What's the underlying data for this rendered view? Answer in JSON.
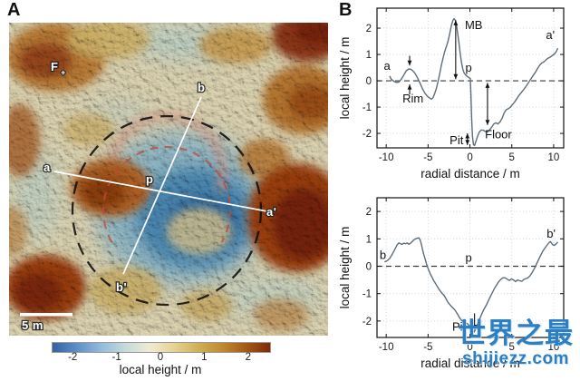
{
  "panels": {
    "a_label": "A",
    "b_label": "B"
  },
  "map": {
    "description": "hillshaded local-topography map of a pit crater with central mound",
    "labels": {
      "feature_f": "F",
      "feature_f_sub": "+",
      "a": "a",
      "a_prime": "a'",
      "b": "b",
      "b_prime": "b'",
      "center_p": "p"
    },
    "scale_bar_label": "5 m",
    "colorbar": {
      "label": "local height / m",
      "ticks": [
        -2,
        -1,
        0,
        1,
        2
      ],
      "range": [
        -2.48,
        2.48
      ],
      "gradient": [
        "#36619f",
        "#5e8ec6",
        "#93badb",
        "#c3dbd9",
        "#efead6",
        "#e6d493",
        "#d0b057",
        "#c08a32",
        "#a45a17",
        "#7c2a0a"
      ]
    },
    "overlay_colors": {
      "rim_circle_dashed": "#0d0d0d",
      "inner_arc_dashed": "#c24a3a",
      "profile_lines": "#ffffff"
    }
  },
  "watermark": {
    "title": "世界之最",
    "site": "shijiezz.com",
    "color": "#2b7fc2"
  },
  "chart_data": [
    {
      "type": "line",
      "name": "radial profile a-a'",
      "xlabel": "radial distance / m",
      "ylabel": "local height / m",
      "xlim": [
        -11.1,
        11.2
      ],
      "ylim": [
        -2.55,
        2.76
      ],
      "xticks": [
        -10,
        -5,
        0,
        5,
        10
      ],
      "yticks": [
        -2,
        -1,
        0,
        1,
        2
      ],
      "grid": true,
      "zero_line": "dashed",
      "line_color": "#5d6d7a",
      "points": [
        [
          -9.6,
          0.18
        ],
        [
          -9.4,
          0.06
        ],
        [
          -9.1,
          -0.02
        ],
        [
          -8.8,
          -0.06
        ],
        [
          -8.5,
          -0.05
        ],
        [
          -8.2,
          0.06
        ],
        [
          -7.9,
          0.22
        ],
        [
          -7.6,
          0.38
        ],
        [
          -7.3,
          0.45
        ],
        [
          -7.1,
          0.44
        ],
        [
          -6.9,
          0.4
        ],
        [
          -6.6,
          0.3
        ],
        [
          -6.3,
          0.14
        ],
        [
          -6.0,
          -0.06
        ],
        [
          -5.7,
          -0.28
        ],
        [
          -5.4,
          -0.46
        ],
        [
          -5.1,
          -0.58
        ],
        [
          -4.8,
          -0.66
        ],
        [
          -4.6,
          -0.7
        ],
        [
          -4.4,
          -0.64
        ],
        [
          -4.2,
          -0.48
        ],
        [
          -4.0,
          -0.28
        ],
        [
          -3.8,
          -0.02
        ],
        [
          -3.6,
          0.28
        ],
        [
          -3.4,
          0.6
        ],
        [
          -3.2,
          0.88
        ],
        [
          -3.0,
          1.12
        ],
        [
          -2.8,
          1.32
        ],
        [
          -2.6,
          1.52
        ],
        [
          -2.4,
          1.82
        ],
        [
          -2.2,
          2.12
        ],
        [
          -2.05,
          2.28
        ],
        [
          -1.9,
          2.36
        ],
        [
          -1.75,
          2.3
        ],
        [
          -1.6,
          2.1
        ],
        [
          -1.45,
          1.78
        ],
        [
          -1.3,
          1.42
        ],
        [
          -1.15,
          1.02
        ],
        [
          -1.0,
          0.68
        ],
        [
          -0.85,
          0.44
        ],
        [
          -0.7,
          0.3
        ],
        [
          -0.5,
          0.22
        ],
        [
          -0.3,
          0.16
        ],
        [
          -0.1,
          0.12
        ],
        [
          0.05,
          0.08
        ],
        [
          0.12,
          -0.5
        ],
        [
          0.2,
          -1.4
        ],
        [
          0.3,
          -2.1
        ],
        [
          0.42,
          -2.42
        ],
        [
          0.55,
          -2.46
        ],
        [
          0.7,
          -2.32
        ],
        [
          0.9,
          -2.12
        ],
        [
          1.1,
          -1.96
        ],
        [
          1.35,
          -1.87
        ],
        [
          1.6,
          -1.88
        ],
        [
          1.85,
          -1.93
        ],
        [
          2.1,
          -1.94
        ],
        [
          2.35,
          -1.87
        ],
        [
          2.6,
          -1.76
        ],
        [
          2.85,
          -1.64
        ],
        [
          3.1,
          -1.6
        ],
        [
          3.35,
          -1.64
        ],
        [
          3.6,
          -1.56
        ],
        [
          3.85,
          -1.42
        ],
        [
          4.1,
          -1.22
        ],
        [
          4.35,
          -1.1
        ],
        [
          4.6,
          -1.06
        ],
        [
          4.85,
          -1.0
        ],
        [
          5.1,
          -0.9
        ],
        [
          5.35,
          -0.8
        ],
        [
          5.6,
          -0.68
        ],
        [
          5.85,
          -0.56
        ],
        [
          6.1,
          -0.46
        ],
        [
          6.35,
          -0.36
        ],
        [
          6.6,
          -0.26
        ],
        [
          6.85,
          -0.14
        ],
        [
          7.1,
          -0.02
        ],
        [
          7.35,
          0.1
        ],
        [
          7.6,
          0.22
        ],
        [
          7.85,
          0.34
        ],
        [
          8.1,
          0.48
        ],
        [
          8.35,
          0.6
        ],
        [
          8.6,
          0.68
        ],
        [
          8.85,
          0.72
        ],
        [
          9.1,
          0.8
        ],
        [
          9.35,
          0.86
        ],
        [
          9.6,
          0.9
        ],
        [
          9.85,
          0.96
        ],
        [
          10.1,
          1.02
        ],
        [
          10.3,
          1.1
        ],
        [
          10.5,
          1.24
        ]
      ],
      "labels": [
        {
          "text": "a",
          "x": -9.9,
          "y": 0.55
        },
        {
          "text": "a'",
          "x": 9.6,
          "y": 1.72
        },
        {
          "text": "MB",
          "x": 0.45,
          "y": 2.1
        },
        {
          "text": "p",
          "x": -0.15,
          "y": 0.48
        },
        {
          "text": "Rim",
          "x": -6.8,
          "y": -0.68
        },
        {
          "text": "Pit",
          "x": -1.6,
          "y": -2.27
        },
        {
          "text": "Floor",
          "x": 3.4,
          "y": -2.05
        }
      ],
      "arrows": [
        {
          "x1": -1.7,
          "y1": 2.3,
          "x2": -1.7,
          "y2": 0.06,
          "heads": "both"
        },
        {
          "x1": -7.2,
          "y1": 0.95,
          "x2": -7.2,
          "y2": 0.58,
          "heads": "end"
        },
        {
          "x1": -7.2,
          "y1": -0.52,
          "x2": -7.2,
          "y2": -0.14,
          "heads": "end"
        },
        {
          "x1": -0.3,
          "y1": -2.0,
          "x2": -0.3,
          "y2": -2.44,
          "heads": "both"
        },
        {
          "x1": 2.1,
          "y1": -0.08,
          "x2": 2.1,
          "y2": -1.68,
          "heads": "both"
        }
      ]
    },
    {
      "type": "line",
      "name": "radial profile b-b'",
      "xlabel": "radial distance / m",
      "ylabel": "local height / m",
      "xlim": [
        -11.1,
        11.2
      ],
      "ylim": [
        -2.6,
        2.5
      ],
      "xticks": [
        -10,
        -5,
        0,
        5,
        10
      ],
      "yticks": [
        -2,
        -1,
        0,
        1,
        2
      ],
      "grid": true,
      "zero_line": "dashed",
      "line_color": "#5d6d7a",
      "points": [
        [
          -10.2,
          0.16
        ],
        [
          -9.9,
          0.2
        ],
        [
          -9.6,
          0.28
        ],
        [
          -9.3,
          0.42
        ],
        [
          -9.0,
          0.6
        ],
        [
          -8.7,
          0.78
        ],
        [
          -8.5,
          0.85
        ],
        [
          -8.3,
          0.82
        ],
        [
          -8.1,
          0.8
        ],
        [
          -7.9,
          0.84
        ],
        [
          -7.7,
          0.82
        ],
        [
          -7.5,
          0.85
        ],
        [
          -7.3,
          0.8
        ],
        [
          -7.1,
          0.84
        ],
        [
          -6.9,
          0.9
        ],
        [
          -6.7,
          0.96
        ],
        [
          -6.5,
          1.0
        ],
        [
          -6.3,
          1.02
        ],
        [
          -6.1,
          1.04
        ],
        [
          -5.95,
          0.96
        ],
        [
          -5.8,
          0.8
        ],
        [
          -5.65,
          0.6
        ],
        [
          -5.5,
          0.42
        ],
        [
          -5.35,
          0.26
        ],
        [
          -5.2,
          0.1
        ],
        [
          -5.05,
          -0.04
        ],
        [
          -4.9,
          -0.16
        ],
        [
          -4.7,
          -0.3
        ],
        [
          -4.5,
          -0.42
        ],
        [
          -4.3,
          -0.54
        ],
        [
          -4.1,
          -0.64
        ],
        [
          -3.9,
          -0.74
        ],
        [
          -3.7,
          -0.84
        ],
        [
          -3.5,
          -0.92
        ],
        [
          -3.3,
          -1.0
        ],
        [
          -3.1,
          -1.06
        ],
        [
          -2.9,
          -1.16
        ],
        [
          -2.7,
          -1.28
        ],
        [
          -2.5,
          -1.36
        ],
        [
          -2.3,
          -1.44
        ],
        [
          -2.1,
          -1.5
        ],
        [
          -1.9,
          -1.56
        ],
        [
          -1.7,
          -1.64
        ],
        [
          -1.5,
          -1.74
        ],
        [
          -1.3,
          -1.84
        ],
        [
          -1.1,
          -1.94
        ],
        [
          -0.9,
          -2.0
        ],
        [
          -0.7,
          -2.04
        ],
        [
          -0.5,
          -2.06
        ],
        [
          -0.3,
          -2.1
        ],
        [
          -0.1,
          -2.16
        ],
        [
          0.1,
          -2.24
        ],
        [
          0.3,
          -2.32
        ],
        [
          0.5,
          -2.4
        ],
        [
          0.65,
          -2.32
        ],
        [
          0.8,
          -2.2
        ],
        [
          1.0,
          -2.05
        ],
        [
          1.2,
          -1.9
        ],
        [
          1.45,
          -1.72
        ],
        [
          1.7,
          -1.56
        ],
        [
          1.95,
          -1.42
        ],
        [
          2.2,
          -1.26
        ],
        [
          2.45,
          -1.1
        ],
        [
          2.7,
          -0.95
        ],
        [
          2.95,
          -0.8
        ],
        [
          3.2,
          -0.68
        ],
        [
          3.45,
          -0.56
        ],
        [
          3.7,
          -0.48
        ],
        [
          3.95,
          -0.42
        ],
        [
          4.2,
          -0.42
        ],
        [
          4.45,
          -0.47
        ],
        [
          4.7,
          -0.52
        ],
        [
          4.95,
          -0.46
        ],
        [
          5.2,
          -0.5
        ],
        [
          5.45,
          -0.56
        ],
        [
          5.7,
          -0.5
        ],
        [
          5.95,
          -0.53
        ],
        [
          6.2,
          -0.55
        ],
        [
          6.45,
          -0.48
        ],
        [
          6.7,
          -0.45
        ],
        [
          6.95,
          -0.42
        ],
        [
          7.2,
          -0.34
        ],
        [
          7.45,
          -0.22
        ],
        [
          7.7,
          -0.08
        ],
        [
          7.95,
          0.08
        ],
        [
          8.2,
          0.24
        ],
        [
          8.45,
          0.4
        ],
        [
          8.7,
          0.55
        ],
        [
          8.95,
          0.66
        ],
        [
          9.2,
          0.76
        ],
        [
          9.45,
          0.86
        ],
        [
          9.6,
          0.9
        ],
        [
          9.75,
          0.84
        ],
        [
          9.9,
          0.78
        ],
        [
          10.1,
          0.76
        ],
        [
          10.3,
          0.82
        ],
        [
          10.5,
          0.88
        ]
      ],
      "labels": [
        {
          "text": "b",
          "x": -10.4,
          "y": 0.4
        },
        {
          "text": "b'",
          "x": 9.7,
          "y": 1.18
        },
        {
          "text": "p",
          "x": -0.15,
          "y": 0.3
        },
        {
          "text": "Pit",
          "x": -1.3,
          "y": -2.22
        }
      ],
      "arrows": [
        {
          "x1": 0.55,
          "y1": -1.72,
          "x2": 0.55,
          "y2": -2.32,
          "heads": "end"
        }
      ]
    }
  ]
}
